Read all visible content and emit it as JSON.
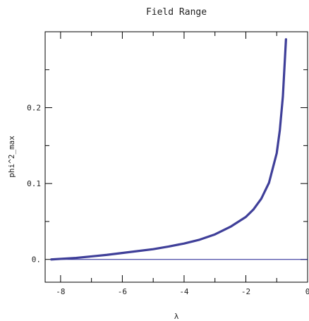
{
  "chart_data": {
    "type": "line",
    "title": "Field Range",
    "xlabel": "λ",
    "ylabel": "phi^2_max",
    "xlim": [
      -8.5,
      0
    ],
    "ylim": [
      -0.03,
      0.3
    ],
    "x_ticks": [
      {
        "value": -8,
        "label": "-8"
      },
      {
        "value": -6,
        "label": "-6"
      },
      {
        "value": -4,
        "label": "-4"
      },
      {
        "value": -2,
        "label": "-2"
      },
      {
        "value": 0,
        "label": "0"
      }
    ],
    "y_ticks": [
      {
        "value": 0,
        "label": "0."
      },
      {
        "value": 0.1,
        "label": "0.1"
      },
      {
        "value": 0.2,
        "label": "0.2"
      }
    ],
    "grid": false,
    "series": [
      {
        "color": "#3f3f99",
        "x": [
          -8.3,
          -7.5,
          -6.5,
          -5.5,
          -5.0,
          -4.5,
          -4.0,
          -3.5,
          -3.0,
          -2.5,
          -2.0,
          -1.75,
          -1.5,
          -1.25,
          -1.0,
          -0.9,
          -0.8,
          -0.7
        ],
        "y": [
          0.0,
          0.002,
          0.006,
          0.011,
          0.0135,
          0.017,
          0.021,
          0.026,
          0.033,
          0.043,
          0.056,
          0.066,
          0.08,
          0.101,
          0.14,
          0.17,
          0.215,
          0.29
        ]
      }
    ],
    "reference_line": {
      "y": 0,
      "color": "#1f1f8f"
    }
  }
}
